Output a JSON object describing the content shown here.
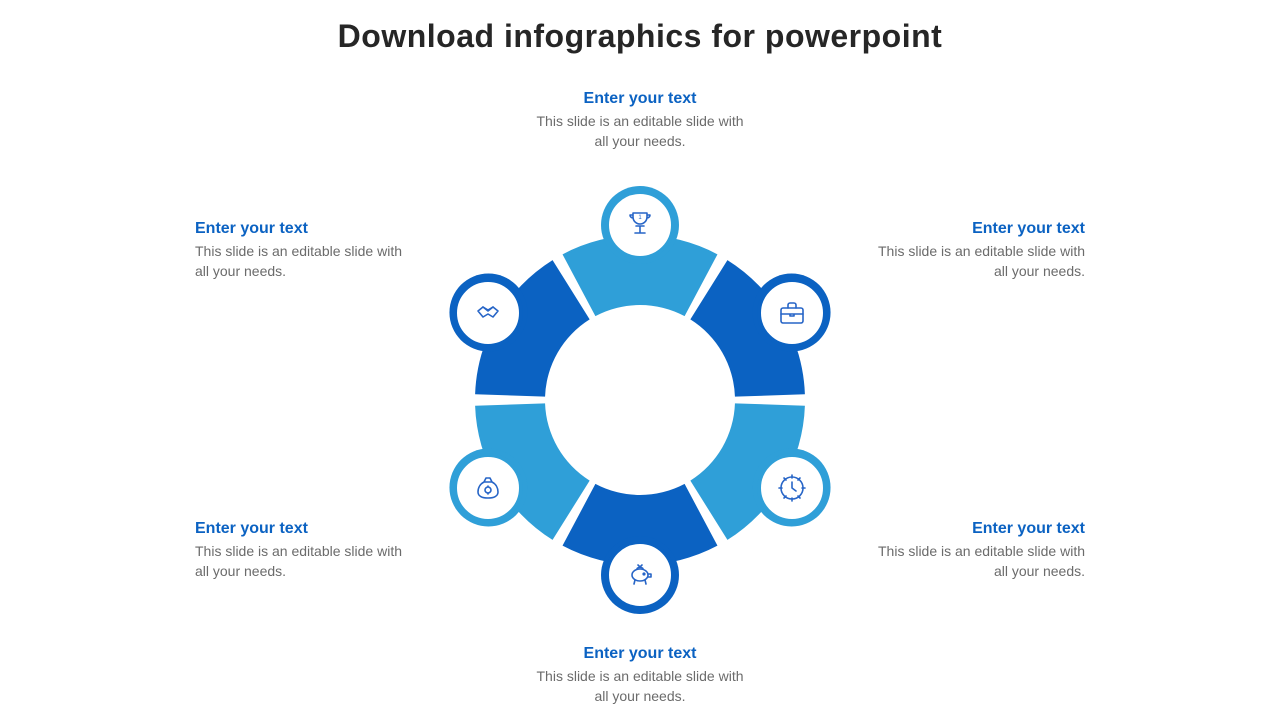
{
  "title": "Download infographics for powerpoint",
  "layout": {
    "outer_radius": 165,
    "inner_radius": 95,
    "icon_radius": 175,
    "icon_disc_diameter": 70,
    "gap_deg": 4,
    "text_offset": 300,
    "text_offset_vert": 255
  },
  "colors": {
    "heading": "#0b62c2",
    "desc": "#6b6b6b",
    "bg": "#ffffff",
    "segments": [
      "#2f9fd8",
      "#0b62c2",
      "#2f9fd8",
      "#0b62c2",
      "#2f9fd8",
      "#0b62c2"
    ],
    "icon_stroke": "#2765c7"
  },
  "items": [
    {
      "angle": -90,
      "align": "center",
      "side": "top",
      "icon": "trophy",
      "heading": "Enter your text",
      "desc": "This slide is an editable slide with all your needs."
    },
    {
      "angle": -30,
      "align": "left",
      "side": "right",
      "icon": "briefcase",
      "heading": "Enter your text",
      "desc": "This slide is an editable slide with all your needs."
    },
    {
      "angle": 30,
      "align": "left",
      "side": "right",
      "icon": "clock",
      "heading": "Enter your text",
      "desc": "This slide is an editable slide with all your needs."
    },
    {
      "angle": 90,
      "align": "center",
      "side": "bottom",
      "icon": "piggy",
      "heading": "Enter your text",
      "desc": "This slide is an editable slide with all your needs."
    },
    {
      "angle": 150,
      "align": "right",
      "side": "left",
      "icon": "moneybag",
      "heading": "Enter your text",
      "desc": "This slide is an editable slide with all your needs."
    },
    {
      "angle": 210,
      "align": "right",
      "side": "left",
      "icon": "handshake",
      "heading": "Enter your text",
      "desc": "This slide is an editable slide with all your needs."
    }
  ]
}
